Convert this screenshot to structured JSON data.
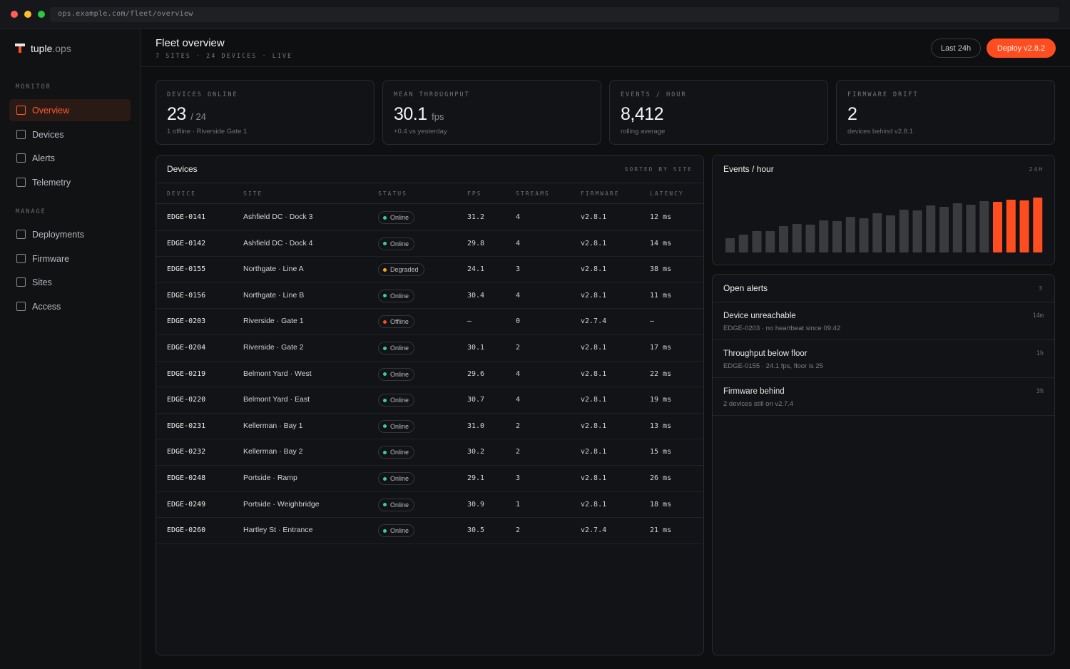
{
  "browser": {
    "url": "ops.example.com/fleet/overview"
  },
  "colors": {
    "accent": "#ff4d1f",
    "online": "#3ecf8e",
    "degraded": "#f5a623",
    "offline": "#ff4d1f",
    "bar_muted": "#3a3b3f"
  },
  "sidebar": {
    "brand": {
      "name": "tuple",
      "suffix": ".ops"
    },
    "sections": [
      {
        "label": "MONITOR",
        "items": [
          {
            "label": "Overview",
            "active": true
          },
          {
            "label": "Devices"
          },
          {
            "label": "Alerts"
          },
          {
            "label": "Telemetry"
          }
        ]
      },
      {
        "label": "MANAGE",
        "items": [
          {
            "label": "Deployments"
          },
          {
            "label": "Firmware"
          },
          {
            "label": "Sites"
          },
          {
            "label": "Access"
          }
        ]
      }
    ]
  },
  "header": {
    "title": "Fleet overview",
    "subtitle": "7 SITES · 24 DEVICES · LIVE",
    "range_button": "Last 24h",
    "deploy_button": "Deploy v2.8.2"
  },
  "stats": [
    {
      "label": "DEVICES ONLINE",
      "value": "23",
      "unit": "/ 24",
      "note": "1 offline · Riverside Gate 1"
    },
    {
      "label": "MEAN THROUGHPUT",
      "value": "30.1",
      "unit": "fps",
      "note": "+0.4 vs yesterday"
    },
    {
      "label": "EVENTS / HOUR",
      "value": "8,412",
      "unit": "",
      "note": "rolling average"
    },
    {
      "label": "FIRMWARE DRIFT",
      "value": "2",
      "unit": "",
      "note": "devices behind v2.8.1"
    }
  ],
  "devices": {
    "title": "Devices",
    "sort_label": "SORTED BY SITE",
    "columns": [
      "DEVICE",
      "SITE",
      "STATUS",
      "FPS",
      "STREAMS",
      "FIRMWARE",
      "LATENCY"
    ],
    "rows": [
      {
        "device": "EDGE-0141",
        "site": "Ashfield DC · Dock 3",
        "status": "Online",
        "fps": "31.2",
        "streams": "4",
        "firmware": "v2.8.1",
        "latency": "12 ms"
      },
      {
        "device": "EDGE-0142",
        "site": "Ashfield DC · Dock 4",
        "status": "Online",
        "fps": "29.8",
        "streams": "4",
        "firmware": "v2.8.1",
        "latency": "14 ms"
      },
      {
        "device": "EDGE-0155",
        "site": "Northgate · Line A",
        "status": "Degraded",
        "fps": "24.1",
        "streams": "3",
        "firmware": "v2.8.1",
        "latency": "38 ms"
      },
      {
        "device": "EDGE-0156",
        "site": "Northgate · Line B",
        "status": "Online",
        "fps": "30.4",
        "streams": "4",
        "firmware": "v2.8.1",
        "latency": "11 ms"
      },
      {
        "device": "EDGE-0203",
        "site": "Riverside · Gate 1",
        "status": "Offline",
        "fps": "—",
        "streams": "0",
        "firmware": "v2.7.4",
        "latency": "—"
      },
      {
        "device": "EDGE-0204",
        "site": "Riverside · Gate 2",
        "status": "Online",
        "fps": "30.1",
        "streams": "2",
        "firmware": "v2.8.1",
        "latency": "17 ms"
      },
      {
        "device": "EDGE-0219",
        "site": "Belmont Yard · West",
        "status": "Online",
        "fps": "29.6",
        "streams": "4",
        "firmware": "v2.8.1",
        "latency": "22 ms"
      },
      {
        "device": "EDGE-0220",
        "site": "Belmont Yard · East",
        "status": "Online",
        "fps": "30.7",
        "streams": "4",
        "firmware": "v2.8.1",
        "latency": "19 ms"
      },
      {
        "device": "EDGE-0231",
        "site": "Kellerman · Bay 1",
        "status": "Online",
        "fps": "31.0",
        "streams": "2",
        "firmware": "v2.8.1",
        "latency": "13 ms"
      },
      {
        "device": "EDGE-0232",
        "site": "Kellerman · Bay 2",
        "status": "Online",
        "fps": "30.2",
        "streams": "2",
        "firmware": "v2.8.1",
        "latency": "15 ms"
      },
      {
        "device": "EDGE-0248",
        "site": "Portside · Ramp",
        "status": "Online",
        "fps": "29.1",
        "streams": "3",
        "firmware": "v2.8.1",
        "latency": "26 ms"
      },
      {
        "device": "EDGE-0249",
        "site": "Portside · Weighbridge",
        "status": "Online",
        "fps": "30.9",
        "streams": "1",
        "firmware": "v2.8.1",
        "latency": "18 ms"
      },
      {
        "device": "EDGE-0260",
        "site": "Hartley St · Entrance",
        "status": "Online",
        "fps": "30.5",
        "streams": "2",
        "firmware": "v2.7.4",
        "latency": "21 ms"
      }
    ]
  },
  "events_panel": {
    "title": "Events / hour",
    "range": "24H"
  },
  "chart_data": {
    "type": "bar",
    "values": [
      20,
      25,
      30,
      30,
      37,
      40,
      39,
      45,
      44,
      50,
      48,
      55,
      52,
      60,
      59,
      66,
      64,
      69,
      67,
      72,
      71,
      74,
      73,
      77
    ],
    "highlight_last": 4,
    "ylim": [
      0,
      80
    ],
    "grid": false,
    "title": "",
    "xlabel": "",
    "ylabel": ""
  },
  "alerts": {
    "title": "Open alerts",
    "count": "3",
    "items": [
      {
        "title": "Device unreachable",
        "desc": "EDGE-0203 · no heartbeat since 09:42",
        "time": "14m"
      },
      {
        "title": "Throughput below floor",
        "desc": "EDGE-0155 · 24.1 fps, floor is 25",
        "time": "1h"
      },
      {
        "title": "Firmware behind",
        "desc": "2 devices still on v2.7.4",
        "time": "3h"
      }
    ]
  }
}
